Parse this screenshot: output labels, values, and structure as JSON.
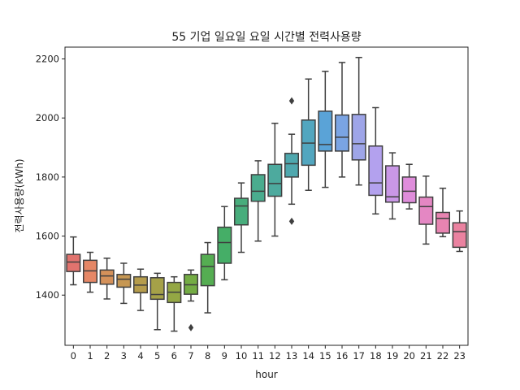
{
  "chart_data": {
    "type": "box",
    "title": "55 기업 일요일 요일 시간별 전력사용량",
    "xlabel": "hour",
    "ylabel": "전력사용량(kWh)",
    "ylim": [
      1230,
      2240
    ],
    "yticks": [
      1400,
      1600,
      1800,
      2000,
      2200
    ],
    "grid": false,
    "categories": [
      "0",
      "1",
      "2",
      "3",
      "4",
      "5",
      "6",
      "7",
      "8",
      "9",
      "10",
      "11",
      "12",
      "13",
      "14",
      "15",
      "16",
      "17",
      "18",
      "19",
      "20",
      "21",
      "22",
      "23"
    ],
    "boxes": [
      {
        "whisker_low": 1435,
        "q1": 1480,
        "median": 1512,
        "q3": 1538,
        "whisker_high": 1597,
        "outliers": [],
        "color": "#e1736e"
      },
      {
        "whisker_low": 1410,
        "q1": 1443,
        "median": 1482,
        "q3": 1518,
        "whisker_high": 1545,
        "outliers": [],
        "color": "#e58766"
      },
      {
        "whisker_low": 1387,
        "q1": 1437,
        "median": 1465,
        "q3": 1485,
        "whisker_high": 1525,
        "outliers": [],
        "color": "#d4915a"
      },
      {
        "whisker_low": 1372,
        "q1": 1427,
        "median": 1454,
        "q3": 1470,
        "whisker_high": 1508,
        "outliers": [],
        "color": "#c69753"
      },
      {
        "whisker_low": 1348,
        "q1": 1408,
        "median": 1434,
        "q3": 1462,
        "whisker_high": 1488,
        "outliers": [],
        "color": "#b59c4c"
      },
      {
        "whisker_low": 1283,
        "q1": 1386,
        "median": 1402,
        "q3": 1459,
        "whisker_high": 1474,
        "outliers": [],
        "color": "#a5a148"
      },
      {
        "whisker_low": 1278,
        "q1": 1375,
        "median": 1410,
        "q3": 1443,
        "whisker_high": 1462,
        "outliers": [],
        "color": "#94a744"
      },
      {
        "whisker_low": 1380,
        "q1": 1403,
        "median": 1435,
        "q3": 1470,
        "whisker_high": 1485,
        "outliers": [
          1290
        ],
        "color": "#74ac44"
      },
      {
        "whisker_low": 1340,
        "q1": 1432,
        "median": 1497,
        "q3": 1538,
        "whisker_high": 1578,
        "outliers": [],
        "color": "#55ad52"
      },
      {
        "whisker_low": 1452,
        "q1": 1508,
        "median": 1578,
        "q3": 1630,
        "whisker_high": 1700,
        "outliers": [],
        "color": "#45ae67"
      },
      {
        "whisker_low": 1545,
        "q1": 1638,
        "median": 1702,
        "q3": 1728,
        "whisker_high": 1780,
        "outliers": [],
        "color": "#48ad7c"
      },
      {
        "whisker_low": 1583,
        "q1": 1718,
        "median": 1752,
        "q3": 1808,
        "whisker_high": 1855,
        "outliers": [],
        "color": "#4aac8e"
      },
      {
        "whisker_low": 1600,
        "q1": 1735,
        "median": 1778,
        "q3": 1843,
        "whisker_high": 1982,
        "outliers": [],
        "color": "#4daa9e"
      },
      {
        "whisker_low": 1708,
        "q1": 1800,
        "median": 1845,
        "q3": 1880,
        "whisker_high": 1945,
        "outliers": [
          2058,
          1650
        ],
        "color": "#4fa8ae"
      },
      {
        "whisker_low": 1755,
        "q1": 1840,
        "median": 1915,
        "q3": 1993,
        "whisker_high": 2132,
        "outliers": [],
        "color": "#52a6bf"
      },
      {
        "whisker_low": 1765,
        "q1": 1888,
        "median": 1910,
        "q3": 2023,
        "whisker_high": 2158,
        "outliers": [],
        "color": "#5aa3d7"
      },
      {
        "whisker_low": 1800,
        "q1": 1888,
        "median": 1935,
        "q3": 2010,
        "whisker_high": 2188,
        "outliers": [],
        "color": "#7aa4e3"
      },
      {
        "whisker_low": 1773,
        "q1": 1858,
        "median": 1913,
        "q3": 2012,
        "whisker_high": 2205,
        "outliers": [],
        "color": "#9ea5e8"
      },
      {
        "whisker_low": 1675,
        "q1": 1738,
        "median": 1780,
        "q3": 1905,
        "whisker_high": 2035,
        "outliers": [],
        "color": "#b3a1ee"
      },
      {
        "whisker_low": 1658,
        "q1": 1715,
        "median": 1733,
        "q3": 1838,
        "whisker_high": 1882,
        "outliers": [],
        "color": "#c997e6"
      },
      {
        "whisker_low": 1692,
        "q1": 1713,
        "median": 1752,
        "q3": 1800,
        "whisker_high": 1843,
        "outliers": [],
        "color": "#df8ddb"
      },
      {
        "whisker_low": 1573,
        "q1": 1640,
        "median": 1700,
        "q3": 1732,
        "whisker_high": 1803,
        "outliers": [],
        "color": "#e487c3"
      },
      {
        "whisker_low": 1598,
        "q1": 1610,
        "median": 1660,
        "q3": 1680,
        "whisker_high": 1762,
        "outliers": [],
        "color": "#e884b1"
      },
      {
        "whisker_low": 1548,
        "q1": 1562,
        "median": 1615,
        "q3": 1645,
        "whisker_high": 1685,
        "outliers": [],
        "color": "#ea82a0"
      }
    ]
  }
}
